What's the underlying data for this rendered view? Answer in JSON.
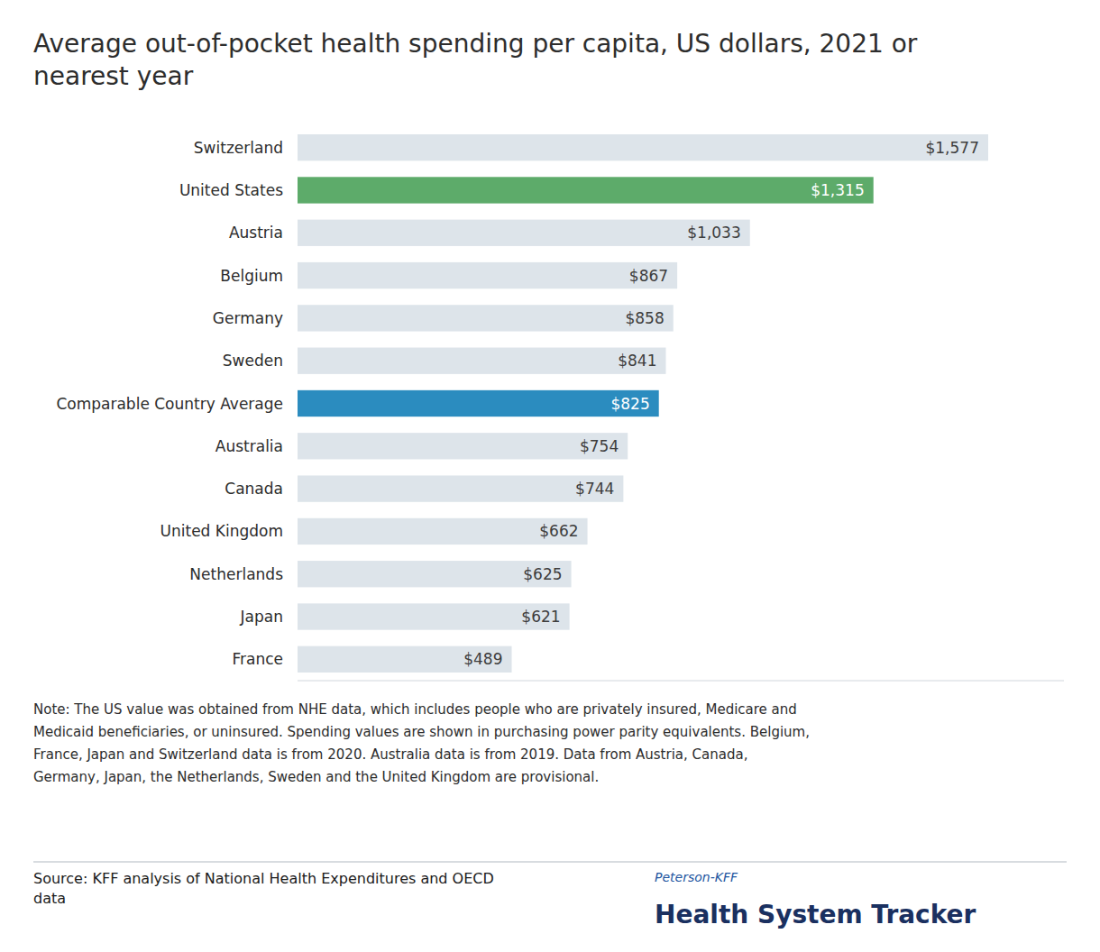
{
  "chart_data": {
    "type": "bar",
    "orientation": "horizontal",
    "title": "Average out-of-pocket health spending per capita, US dollars, 2021 or\nnearest year",
    "categories": [
      "Switzerland",
      "United States",
      "Austria",
      "Belgium",
      "Germany",
      "Sweden",
      "Comparable Country Average",
      "Australia",
      "Canada",
      "United Kingdom",
      "Netherlands",
      "Japan",
      "France"
    ],
    "values": [
      1577,
      1315,
      1033,
      867,
      858,
      841,
      825,
      754,
      744,
      662,
      625,
      621,
      489
    ],
    "value_labels": [
      "$1,577",
      "$1,315",
      "$1,033",
      "$867",
      "$858",
      "$841",
      "$825",
      "$754",
      "$744",
      "$662",
      "$625",
      "$621",
      "$489"
    ],
    "colors": [
      "#dde4ea",
      "#5dab6a",
      "#dde4ea",
      "#dde4ea",
      "#dde4ea",
      "#dde4ea",
      "#2b8cbf",
      "#dde4ea",
      "#dde4ea",
      "#dde4ea",
      "#dde4ea",
      "#dde4ea",
      "#dde4ea"
    ],
    "xlim": [
      0,
      1750
    ],
    "grid": false,
    "tick_labels": false,
    "data_labels": true,
    "note": "Note:  The US value was obtained from NHE data, which includes people who are privately insured, Medicare and\nMedicaid beneficiaries, or uninsured. Spending values are shown in purchasing power parity equivalents. Belgium,\nFrance, Japan and Switzerland data is from 2020. Australia data is from 2019. Data from Austria, Canada,\nGermany, Japan, the Netherlands, Sweden and the United Kingdom are provisional.",
    "source": "Source: KFF analysis of National Health Expenditures and OECD\ndata",
    "annotations": [
      "Peterson-KFF",
      "Health System Tracker"
    ]
  }
}
